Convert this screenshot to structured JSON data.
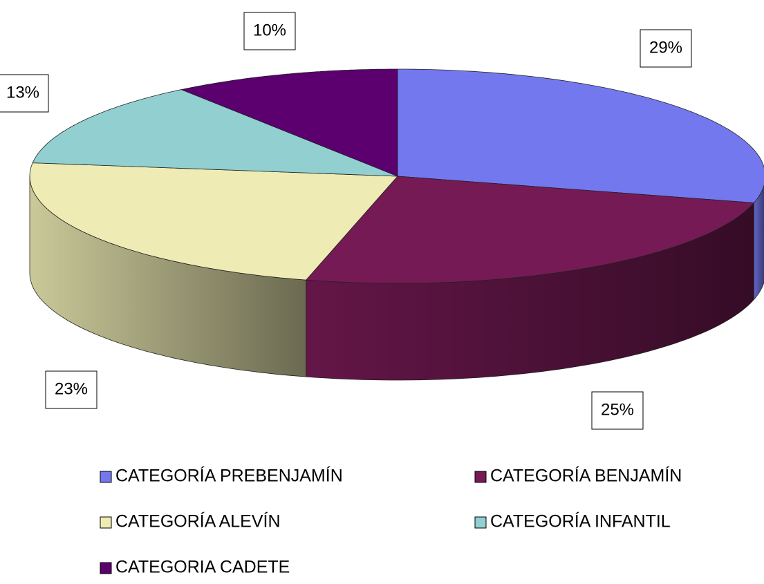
{
  "chart_data": {
    "type": "pie",
    "categories": [
      "CATEGORÍA PREBENJAMÍN",
      "CATEGORÍA BENJAMÍN",
      "CATEGORÍA ALEVÍN",
      "CATEGORÍA INFANTIL",
      "CATEGORIA CADETE"
    ],
    "values": [
      29,
      25,
      23,
      13,
      10
    ],
    "value_labels": [
      "29%",
      "25%",
      "23%",
      "13%",
      "10%"
    ],
    "colors": [
      "#7478ee",
      "#761a55",
      "#eeecb4",
      "#91cfd1",
      "#5b006e"
    ],
    "legend": "bottom"
  }
}
